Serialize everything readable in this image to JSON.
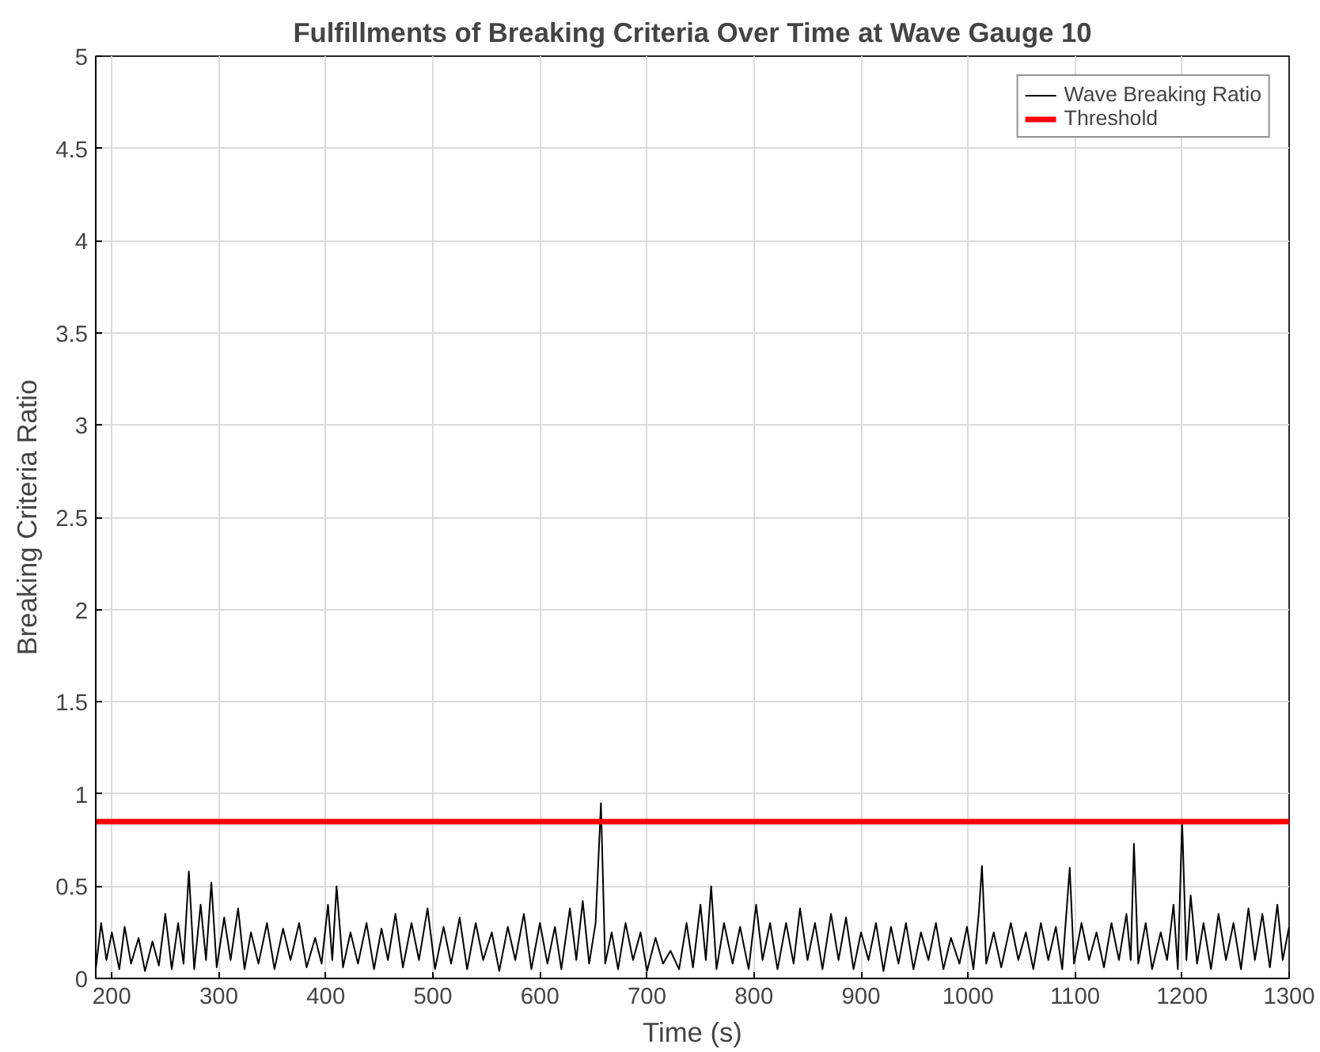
{
  "chart_data": {
    "type": "line",
    "title": "Fulfillments of Breaking Criteria Over Time at Wave Gauge 10",
    "xlabel": "Time (s)",
    "ylabel": "Breaking Criteria Ratio",
    "x": [
      185,
      190,
      195,
      200,
      207,
      212,
      218,
      225,
      231,
      238,
      244,
      250,
      256,
      262,
      267,
      272,
      277,
      283,
      288,
      293,
      298,
      305,
      311,
      318,
      324,
      330,
      337,
      345,
      352,
      360,
      367,
      375,
      382,
      390,
      396,
      402,
      406,
      410,
      416,
      423,
      430,
      438,
      445,
      452,
      458,
      465,
      472,
      480,
      487,
      495,
      502,
      510,
      517,
      525,
      532,
      540,
      547,
      555,
      562,
      570,
      577,
      585,
      592,
      600,
      607,
      614,
      620,
      628,
      634,
      640,
      646,
      652,
      657,
      661,
      667,
      673,
      680,
      687,
      694,
      700,
      708,
      715,
      722,
      730,
      737,
      743,
      750,
      755,
      760,
      765,
      772,
      780,
      787,
      795,
      802,
      808,
      815,
      822,
      830,
      837,
      843,
      850,
      857,
      864,
      872,
      879,
      886,
      893,
      900,
      907,
      914,
      921,
      928,
      935,
      942,
      949,
      956,
      963,
      970,
      977,
      984,
      992,
      999,
      1005,
      1010,
      1013,
      1017,
      1024,
      1031,
      1040,
      1047,
      1054,
      1061,
      1068,
      1075,
      1082,
      1088,
      1095,
      1099,
      1106,
      1113,
      1120,
      1127,
      1134,
      1141,
      1148,
      1152,
      1155,
      1159,
      1166,
      1172,
      1180,
      1186,
      1192,
      1196,
      1200,
      1204,
      1208,
      1214,
      1220,
      1227,
      1234,
      1241,
      1248,
      1255,
      1262,
      1268,
      1275,
      1282,
      1289,
      1294,
      1300
    ],
    "series": [
      {
        "name": "Wave Breaking Ratio",
        "color": "#000000",
        "values": [
          0.05,
          0.3,
          0.1,
          0.25,
          0.05,
          0.28,
          0.08,
          0.22,
          0.04,
          0.2,
          0.07,
          0.35,
          0.05,
          0.3,
          0.08,
          0.58,
          0.05,
          0.4,
          0.1,
          0.52,
          0.06,
          0.33,
          0.1,
          0.38,
          0.05,
          0.25,
          0.08,
          0.3,
          0.05,
          0.27,
          0.1,
          0.3,
          0.06,
          0.22,
          0.08,
          0.4,
          0.1,
          0.5,
          0.06,
          0.25,
          0.08,
          0.3,
          0.05,
          0.27,
          0.1,
          0.35,
          0.06,
          0.3,
          0.1,
          0.38,
          0.05,
          0.28,
          0.08,
          0.33,
          0.05,
          0.3,
          0.1,
          0.25,
          0.04,
          0.28,
          0.1,
          0.35,
          0.05,
          0.3,
          0.08,
          0.28,
          0.05,
          0.38,
          0.1,
          0.42,
          0.08,
          0.3,
          0.95,
          0.08,
          0.25,
          0.05,
          0.3,
          0.1,
          0.25,
          0.04,
          0.22,
          0.08,
          0.15,
          0.05,
          0.3,
          0.06,
          0.4,
          0.1,
          0.5,
          0.05,
          0.3,
          0.08,
          0.28,
          0.05,
          0.4,
          0.1,
          0.3,
          0.05,
          0.3,
          0.08,
          0.38,
          0.1,
          0.3,
          0.05,
          0.35,
          0.1,
          0.33,
          0.05,
          0.25,
          0.1,
          0.3,
          0.04,
          0.28,
          0.08,
          0.3,
          0.05,
          0.25,
          0.1,
          0.3,
          0.05,
          0.22,
          0.08,
          0.28,
          0.05,
          0.35,
          0.61,
          0.08,
          0.25,
          0.06,
          0.3,
          0.1,
          0.25,
          0.05,
          0.3,
          0.1,
          0.28,
          0.05,
          0.6,
          0.08,
          0.3,
          0.1,
          0.25,
          0.06,
          0.3,
          0.1,
          0.35,
          0.1,
          0.73,
          0.08,
          0.3,
          0.05,
          0.25,
          0.1,
          0.4,
          0.05,
          0.86,
          0.1,
          0.45,
          0.08,
          0.3,
          0.05,
          0.35,
          0.1,
          0.3,
          0.05,
          0.38,
          0.1,
          0.35,
          0.06,
          0.4,
          0.1,
          0.28
        ]
      }
    ],
    "ref_lines": [
      {
        "axis": "y",
        "value": 0.85,
        "label": "Threshold",
        "color": "#ff0000"
      }
    ],
    "xlim": [
      185,
      1300
    ],
    "ylim": [
      0,
      5
    ],
    "xticks": [
      200,
      300,
      400,
      500,
      600,
      700,
      800,
      900,
      1000,
      1100,
      1200,
      1300
    ],
    "yticks": [
      0,
      0.5,
      1,
      1.5,
      2,
      2.5,
      3,
      3.5,
      4,
      4.5,
      5
    ],
    "grid": true,
    "legend": "top right",
    "line_style": "solid",
    "marker": "none"
  }
}
